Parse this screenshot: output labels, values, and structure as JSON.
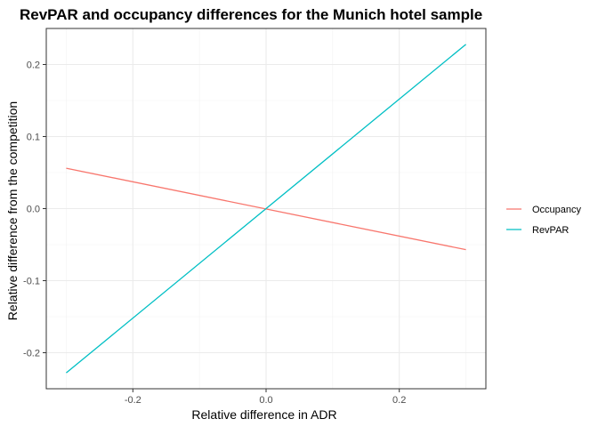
{
  "chart_data": {
    "type": "line",
    "title": "RevPAR and occupancy differences for the Munich hotel sample",
    "xlabel": "Relative difference in ADR",
    "ylabel": "Relative difference from the competition",
    "xlim": [
      -0.33,
      0.33
    ],
    "ylim": [
      -0.25,
      0.25
    ],
    "x_ticks": [
      -0.2,
      0.0,
      0.2
    ],
    "x_tick_labels": [
      "-0.2",
      "0.0",
      "0.2"
    ],
    "y_ticks": [
      -0.2,
      -0.1,
      0.0,
      0.1,
      0.2
    ],
    "y_tick_labels": [
      "-0.2",
      "-0.1",
      "0.0",
      "0.1",
      "0.2"
    ],
    "grid": true,
    "legend_position": "right",
    "series": [
      {
        "name": "Occupancy",
        "color": "#F8766D",
        "x": [
          -0.3,
          0.3
        ],
        "y": [
          0.056,
          -0.057
        ]
      },
      {
        "name": "RevPAR",
        "color": "#00BFC4",
        "x": [
          -0.3,
          0.3
        ],
        "y": [
          -0.228,
          0.228
        ]
      }
    ]
  }
}
